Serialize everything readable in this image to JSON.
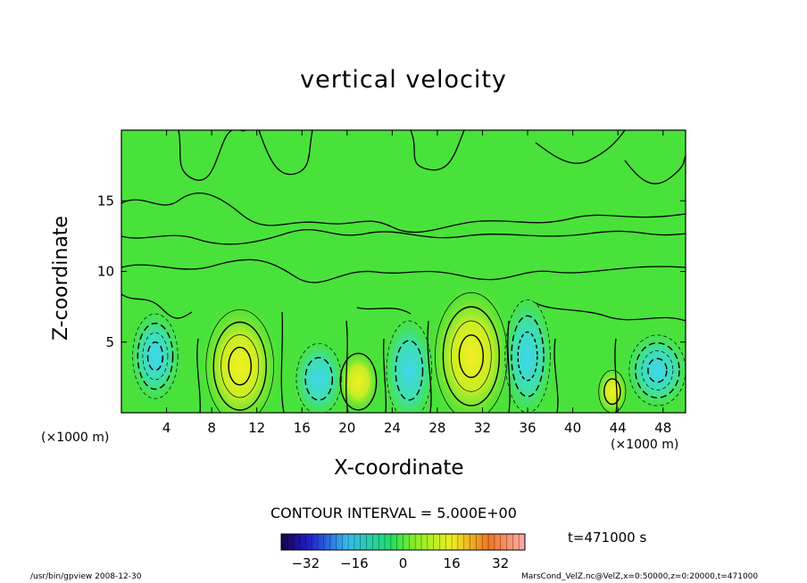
{
  "chart_data": {
    "type": "heatmap",
    "title": "vertical velocity",
    "xlabel": "X-coordinate",
    "ylabel": "Z-coordinate",
    "x_unit": "(×1000 m)",
    "y_unit": "(×1000 m)",
    "xlim": [
      0,
      50
    ],
    "ylim": [
      0,
      20
    ],
    "x_ticks": [
      "4",
      "8",
      "12",
      "16",
      "20",
      "24",
      "28",
      "32",
      "36",
      "40",
      "44",
      "48"
    ],
    "y_ticks": [
      "5",
      "10",
      "15"
    ],
    "contour_interval": "CONTOUR INTERVAL = 5.000E+00",
    "colorbar": {
      "range": [
        -40,
        40
      ],
      "ticks": [
        "−32",
        "−16",
        "0",
        "16",
        "32"
      ]
    },
    "time_label": "t=471000 s",
    "cells": [
      {
        "x": 3,
        "z": 4,
        "value": -22,
        "rx": 2,
        "rz": 3,
        "sign": "negative"
      },
      {
        "x": 10.5,
        "z": 3.3,
        "value": 24,
        "rx": 3,
        "rz": 4,
        "sign": "positive"
      },
      {
        "x": 17.5,
        "z": 2.4,
        "value": -14,
        "rx": 2,
        "rz": 2.5,
        "sign": "negative"
      },
      {
        "x": 21,
        "z": 2.2,
        "value": 8,
        "rx": 1.6,
        "rz": 2,
        "sign": "positive"
      },
      {
        "x": 25.5,
        "z": 3.0,
        "value": -12,
        "rx": 2,
        "rz": 3.5,
        "sign": "negative"
      },
      {
        "x": 31,
        "z": 4.0,
        "value": 24,
        "rx": 3.2,
        "rz": 4.5,
        "sign": "positive"
      },
      {
        "x": 36,
        "z": 4.0,
        "value": -16,
        "rx": 2,
        "rz": 4,
        "sign": "negative"
      },
      {
        "x": 43.5,
        "z": 1.5,
        "value": 10,
        "rx": 1.2,
        "rz": 1.5,
        "sign": "positive"
      },
      {
        "x": 47.5,
        "z": 3.0,
        "value": -20,
        "rx": 2.5,
        "rz": 2.5,
        "sign": "negative"
      }
    ]
  },
  "footer": {
    "left": "/usr/bin/gpview  2008-12-30",
    "right": "MarsCond_VelZ.nc@VelZ,x=0:50000,z=0:20000,t=471000"
  }
}
